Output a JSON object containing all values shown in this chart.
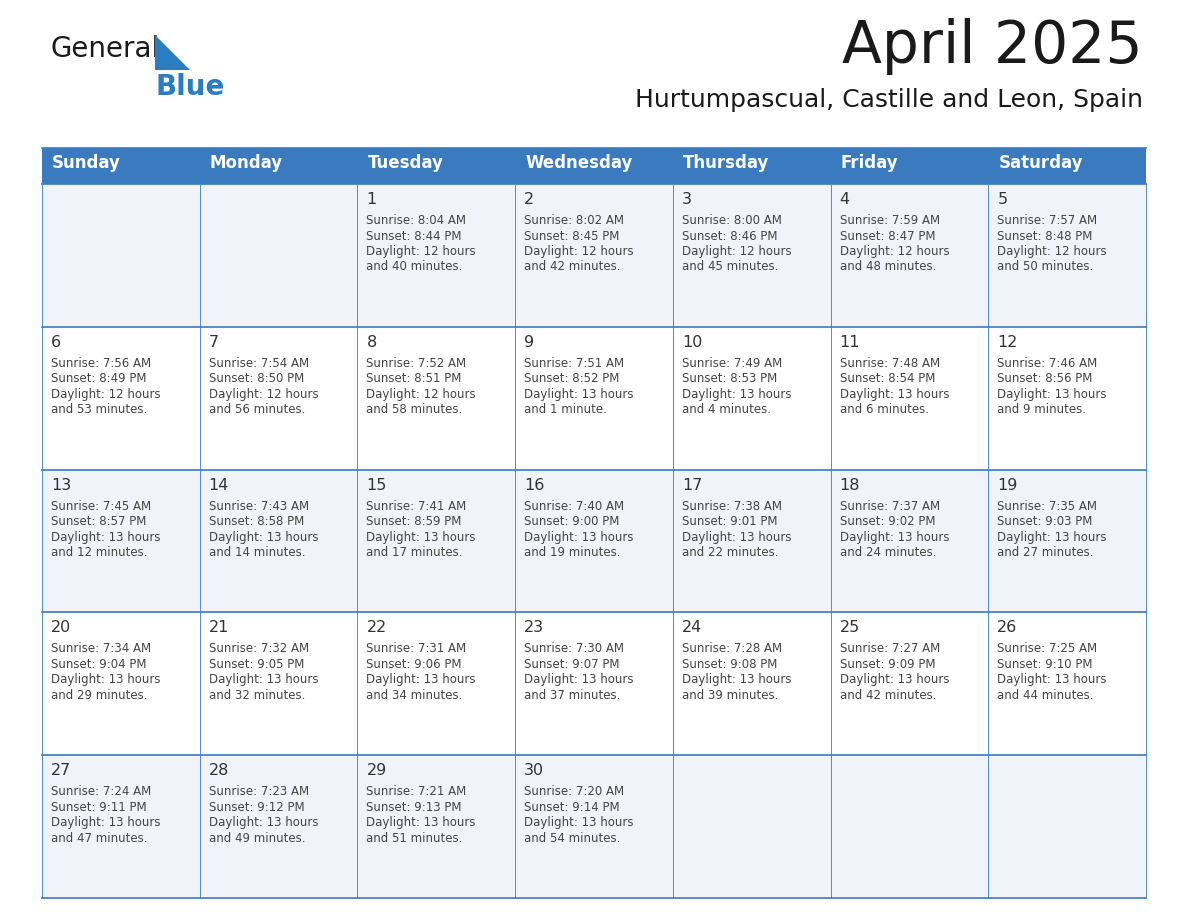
{
  "title": "April 2025",
  "subtitle": "Hurtumpascual, Castille and Leon, Spain",
  "days_of_week": [
    "Sunday",
    "Monday",
    "Tuesday",
    "Wednesday",
    "Thursday",
    "Friday",
    "Saturday"
  ],
  "header_bg": "#3a7abf",
  "header_text": "#ffffff",
  "row_bg_light": "#f0f4f8",
  "row_bg_white": "#ffffff",
  "cell_text_color": "#444444",
  "day_num_color": "#333333",
  "grid_line_color": "#3a7abf",
  "logo_text_color": "#1a1a1a",
  "logo_blue_color": "#2a7dc0",
  "title_color": "#1a1a1a",
  "subtitle_color": "#1a1a1a",
  "calendar_data": [
    [
      {
        "day": null,
        "info": null
      },
      {
        "day": null,
        "info": null
      },
      {
        "day": 1,
        "sunrise": "8:04 AM",
        "sunset": "8:44 PM",
        "daylight": "12 hours",
        "daylight2": "and 40 minutes."
      },
      {
        "day": 2,
        "sunrise": "8:02 AM",
        "sunset": "8:45 PM",
        "daylight": "12 hours",
        "daylight2": "and 42 minutes."
      },
      {
        "day": 3,
        "sunrise": "8:00 AM",
        "sunset": "8:46 PM",
        "daylight": "12 hours",
        "daylight2": "and 45 minutes."
      },
      {
        "day": 4,
        "sunrise": "7:59 AM",
        "sunset": "8:47 PM",
        "daylight": "12 hours",
        "daylight2": "and 48 minutes."
      },
      {
        "day": 5,
        "sunrise": "7:57 AM",
        "sunset": "8:48 PM",
        "daylight": "12 hours",
        "daylight2": "and 50 minutes."
      }
    ],
    [
      {
        "day": 6,
        "sunrise": "7:56 AM",
        "sunset": "8:49 PM",
        "daylight": "12 hours",
        "daylight2": "and 53 minutes."
      },
      {
        "day": 7,
        "sunrise": "7:54 AM",
        "sunset": "8:50 PM",
        "daylight": "12 hours",
        "daylight2": "and 56 minutes."
      },
      {
        "day": 8,
        "sunrise": "7:52 AM",
        "sunset": "8:51 PM",
        "daylight": "12 hours",
        "daylight2": "and 58 minutes."
      },
      {
        "day": 9,
        "sunrise": "7:51 AM",
        "sunset": "8:52 PM",
        "daylight": "13 hours",
        "daylight2": "and 1 minute."
      },
      {
        "day": 10,
        "sunrise": "7:49 AM",
        "sunset": "8:53 PM",
        "daylight": "13 hours",
        "daylight2": "and 4 minutes."
      },
      {
        "day": 11,
        "sunrise": "7:48 AM",
        "sunset": "8:54 PM",
        "daylight": "13 hours",
        "daylight2": "and 6 minutes."
      },
      {
        "day": 12,
        "sunrise": "7:46 AM",
        "sunset": "8:56 PM",
        "daylight": "13 hours",
        "daylight2": "and 9 minutes."
      }
    ],
    [
      {
        "day": 13,
        "sunrise": "7:45 AM",
        "sunset": "8:57 PM",
        "daylight": "13 hours",
        "daylight2": "and 12 minutes."
      },
      {
        "day": 14,
        "sunrise": "7:43 AM",
        "sunset": "8:58 PM",
        "daylight": "13 hours",
        "daylight2": "and 14 minutes."
      },
      {
        "day": 15,
        "sunrise": "7:41 AM",
        "sunset": "8:59 PM",
        "daylight": "13 hours",
        "daylight2": "and 17 minutes."
      },
      {
        "day": 16,
        "sunrise": "7:40 AM",
        "sunset": "9:00 PM",
        "daylight": "13 hours",
        "daylight2": "and 19 minutes."
      },
      {
        "day": 17,
        "sunrise": "7:38 AM",
        "sunset": "9:01 PM",
        "daylight": "13 hours",
        "daylight2": "and 22 minutes."
      },
      {
        "day": 18,
        "sunrise": "7:37 AM",
        "sunset": "9:02 PM",
        "daylight": "13 hours",
        "daylight2": "and 24 minutes."
      },
      {
        "day": 19,
        "sunrise": "7:35 AM",
        "sunset": "9:03 PM",
        "daylight": "13 hours",
        "daylight2": "and 27 minutes."
      }
    ],
    [
      {
        "day": 20,
        "sunrise": "7:34 AM",
        "sunset": "9:04 PM",
        "daylight": "13 hours",
        "daylight2": "and 29 minutes."
      },
      {
        "day": 21,
        "sunrise": "7:32 AM",
        "sunset": "9:05 PM",
        "daylight": "13 hours",
        "daylight2": "and 32 minutes."
      },
      {
        "day": 22,
        "sunrise": "7:31 AM",
        "sunset": "9:06 PM",
        "daylight": "13 hours",
        "daylight2": "and 34 minutes."
      },
      {
        "day": 23,
        "sunrise": "7:30 AM",
        "sunset": "9:07 PM",
        "daylight": "13 hours",
        "daylight2": "and 37 minutes."
      },
      {
        "day": 24,
        "sunrise": "7:28 AM",
        "sunset": "9:08 PM",
        "daylight": "13 hours",
        "daylight2": "and 39 minutes."
      },
      {
        "day": 25,
        "sunrise": "7:27 AM",
        "sunset": "9:09 PM",
        "daylight": "13 hours",
        "daylight2": "and 42 minutes."
      },
      {
        "day": 26,
        "sunrise": "7:25 AM",
        "sunset": "9:10 PM",
        "daylight": "13 hours",
        "daylight2": "and 44 minutes."
      }
    ],
    [
      {
        "day": 27,
        "sunrise": "7:24 AM",
        "sunset": "9:11 PM",
        "daylight": "13 hours",
        "daylight2": "and 47 minutes."
      },
      {
        "day": 28,
        "sunrise": "7:23 AM",
        "sunset": "9:12 PM",
        "daylight": "13 hours",
        "daylight2": "and 49 minutes."
      },
      {
        "day": 29,
        "sunrise": "7:21 AM",
        "sunset": "9:13 PM",
        "daylight": "13 hours",
        "daylight2": "and 51 minutes."
      },
      {
        "day": 30,
        "sunrise": "7:20 AM",
        "sunset": "9:14 PM",
        "daylight": "13 hours",
        "daylight2": "and 54 minutes."
      },
      {
        "day": null,
        "info": null
      },
      {
        "day": null,
        "info": null
      },
      {
        "day": null,
        "info": null
      }
    ]
  ]
}
